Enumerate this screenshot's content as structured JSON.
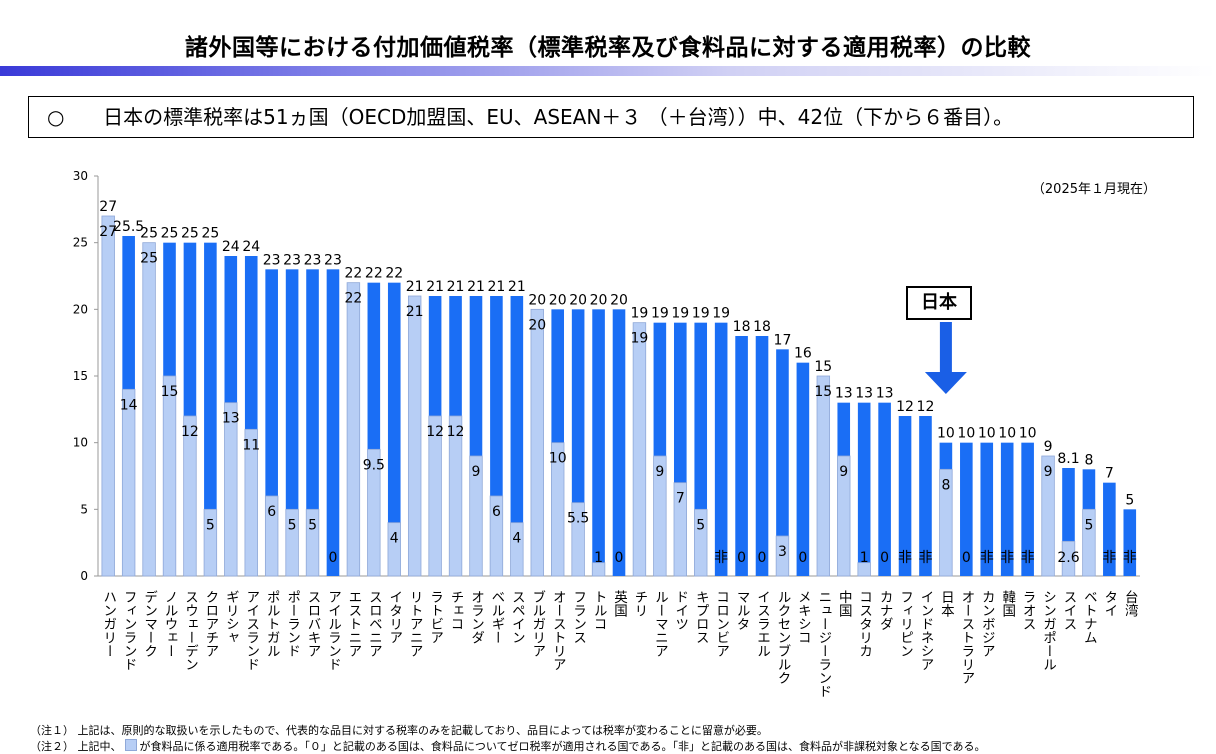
{
  "page": {
    "title": "諸外国等における付加価値税率（標準税率及び食料品に対する適用税率）の比較",
    "headline_marker": "○",
    "headline": "日本の標準税率は51ヵ国（OECD加盟国、EU、ASEAN＋３ （＋台湾））中、42位（下から６番目）。",
    "as_of": "（2025年１月現在）",
    "japan_callout": "日本",
    "note1": "（注１） 上記は、原則的な取扱いを示したもので、代表的な品目に対する税率のみを記載しており、品目によっては税率が変わることに留意が必要。",
    "note2_a": "（注２） 上記中、",
    "note2_b": "が食料品に係る適用税率である。「０」と記載のある国は、食料品についてゼロ税率が適用される国である。「非」と記載のある国は、食料品が非課税対象となる国である。",
    "colors": {
      "standard": "#1a6ef5",
      "food": "#b7cef5",
      "food_border": "#8fa8d8",
      "arrow": "#1a5fe6"
    }
  },
  "chart_data": {
    "type": "bar",
    "ylim": [
      0,
      30
    ],
    "yticks": [
      0,
      5,
      10,
      15,
      20,
      25,
      30
    ],
    "grid": false,
    "series": [
      {
        "values": [
          27,
          25.5,
          25,
          25,
          25,
          25,
          24,
          24,
          23,
          23,
          23,
          23,
          22,
          22,
          22,
          21,
          21,
          21,
          21,
          21,
          21,
          20,
          20,
          20,
          20,
          20,
          19,
          19,
          19,
          19,
          19,
          18,
          18,
          17,
          16,
          15,
          13,
          13,
          13,
          12,
          12,
          10,
          10,
          10,
          10,
          10,
          9,
          8.1,
          8,
          7,
          5
        ]
      },
      {
        "values": [
          27,
          14,
          25,
          15,
          12,
          5,
          13,
          11,
          6,
          5,
          5,
          0,
          22,
          9.5,
          4,
          21,
          12,
          12,
          9,
          6,
          4,
          20,
          10,
          5.5,
          1,
          0,
          19,
          9,
          7,
          5,
          0,
          0,
          0,
          3,
          0,
          15,
          9,
          1,
          0,
          0,
          0,
          8,
          0,
          0,
          0,
          0,
          9,
          2.6,
          5,
          0,
          0
        ]
      }
    ],
    "categories": [
      "ハンガリー",
      "フィンランド",
      "デンマーク",
      "ノルウェー",
      "スウェーデン",
      "クロアチア",
      "ギリシャ",
      "アイスランド",
      "ポルトガル",
      "ポーランド",
      "スロバキア",
      "アイルランド",
      "エストニア",
      "スロベニア",
      "イタリア",
      "リトアニア",
      "ラトビア",
      "チェコ",
      "オランダ",
      "ベルギー",
      "スペイン",
      "ブルガリア",
      "オーストリア",
      "フランス",
      "トルコ",
      "英国",
      "チリ",
      "ルーマニア",
      "ドイツ",
      "キプロス",
      "コロンビア",
      "マルタ",
      "イスラエル",
      "ルクセンブルク",
      "メキシコ",
      "ニュージーランド",
      "中国",
      "コスタリカ",
      "カナダ",
      "フィリピン",
      "インドネシア",
      "日本",
      "オーストラリア",
      "カンボジア",
      "韓国",
      "ラオス",
      "シンガポール",
      "スイス",
      "ベトナム",
      "タイ",
      "台湾"
    ],
    "standard_labels": [
      "27",
      "25.5",
      "25",
      "25",
      "25",
      "25",
      "24",
      "24",
      "23",
      "23",
      "23",
      "23",
      "22",
      "22",
      "22",
      "21",
      "21",
      "21",
      "21",
      "21",
      "21",
      "20",
      "20",
      "20",
      "20",
      "20",
      "19",
      "19",
      "19",
      "19",
      "19",
      "18",
      "18",
      "17",
      "16",
      "15",
      "13",
      "13",
      "13",
      "12",
      "12",
      "10",
      "10",
      "10",
      "10",
      "10",
      "9",
      "8.1",
      "8",
      "7",
      "5"
    ],
    "food_labels": [
      "27",
      "14",
      "25",
      "15",
      "12",
      "5",
      "13",
      "11",
      "6",
      "5",
      "5",
      "0",
      "22",
      "9.5",
      "4",
      "21",
      "12",
      "12",
      "9",
      "6",
      "4",
      "20",
      "10",
      "5.5",
      "1",
      "0",
      "19",
      "9",
      "7",
      "5",
      "非",
      "0",
      "0",
      "3",
      "0",
      "15",
      "9",
      "1",
      "0",
      "非",
      "非",
      "8",
      "0",
      "非",
      "非",
      "非",
      "9",
      "2.6",
      "5",
      "非",
      "非"
    ]
  }
}
